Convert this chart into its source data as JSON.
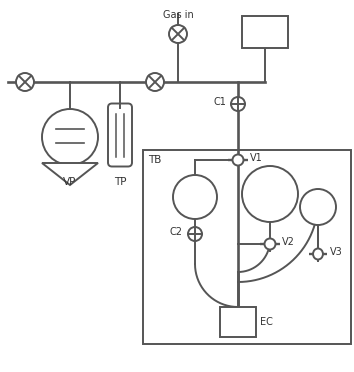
{
  "bg_color": "#ffffff",
  "line_color": "#555555",
  "line_width": 1.4,
  "figsize": [
    3.54,
    3.72
  ],
  "dpi": 100,
  "xlim": [
    0,
    354
  ],
  "ylim": [
    0,
    372
  ]
}
